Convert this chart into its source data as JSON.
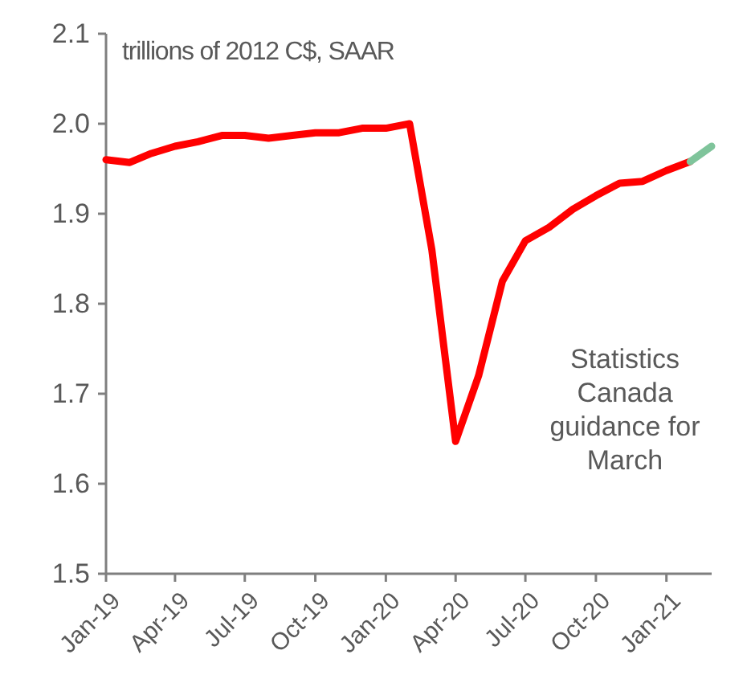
{
  "chart_data": {
    "type": "line",
    "ylabel": "trillions of 2012 C$, SAAR",
    "annotations": [
      "Statistics Canada guidance for March"
    ],
    "xlim": [
      "2019-01",
      "2021-03"
    ],
    "xticks": [
      {
        "value": "2019-01",
        "label": "Jan-19"
      },
      {
        "value": "2019-04",
        "label": "Apr-19"
      },
      {
        "value": "2019-07",
        "label": "Jul-19"
      },
      {
        "value": "2019-10",
        "label": "Oct-19"
      },
      {
        "value": "2020-01",
        "label": "Jan-20"
      },
      {
        "value": "2020-04",
        "label": "Apr-20"
      },
      {
        "value": "2020-07",
        "label": "Jul-20"
      },
      {
        "value": "2020-10",
        "label": "Oct-20"
      },
      {
        "value": "2021-01",
        "label": "Jan-21"
      }
    ],
    "ylim": [
      1.5,
      2.1
    ],
    "yticks": [
      {
        "value": 1.5,
        "label": "1.5"
      },
      {
        "value": 1.6,
        "label": "1.6"
      },
      {
        "value": 1.7,
        "label": "1.7"
      },
      {
        "value": 1.8,
        "label": "1.8"
      },
      {
        "value": 1.9,
        "label": "1.9"
      },
      {
        "value": 2.0,
        "label": "2.0"
      },
      {
        "value": 2.1,
        "label": "2.1"
      }
    ],
    "grid": false,
    "line_style": "solid",
    "marker": "none",
    "series": [
      {
        "color": "#ff0000",
        "x": [
          "2019-01",
          "2019-02",
          "2019-03",
          "2019-04",
          "2019-05",
          "2019-06",
          "2019-07",
          "2019-08",
          "2019-09",
          "2019-10",
          "2019-11",
          "2019-12",
          "2020-01",
          "2020-02",
          "2020-03",
          "2020-04",
          "2020-05",
          "2020-06",
          "2020-07",
          "2020-08",
          "2020-09",
          "2020-10",
          "2020-11",
          "2020-12",
          "2021-01",
          "2021-02"
        ],
        "values": [
          1.96,
          1.957,
          1.967,
          1.975,
          1.98,
          1.987,
          1.987,
          1.984,
          1.987,
          1.99,
          1.99,
          1.995,
          1.995,
          2.0,
          1.86,
          1.647,
          1.72,
          1.825,
          1.87,
          1.885,
          1.905,
          1.92,
          1.934,
          1.936,
          1.948,
          1.958
        ]
      },
      {
        "color": "#7fc49b",
        "x": [
          "2021-02",
          "2021-03"
        ],
        "values": [
          1.958,
          1.975
        ]
      }
    ]
  }
}
